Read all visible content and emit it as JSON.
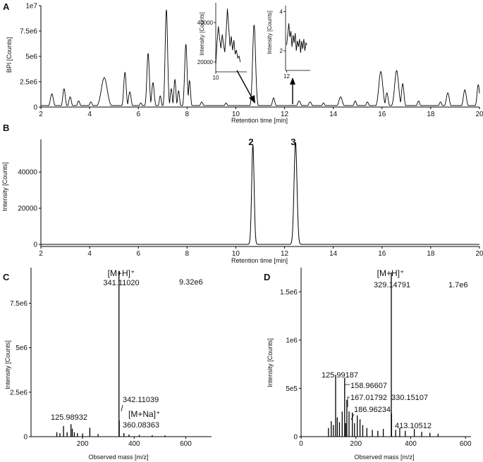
{
  "figure": {
    "panel_labels": [
      "A",
      "B",
      "C",
      "D"
    ]
  },
  "chart_data": [
    {
      "panel": "A",
      "type": "line",
      "xlabel": "Retention time [min]",
      "ylabel": "BPI [Counts]",
      "xlim": [
        2,
        20
      ],
      "ylim": [
        0,
        10000000
      ],
      "xticks": [
        2,
        4,
        6,
        8,
        10,
        12,
        14,
        16,
        18,
        20
      ],
      "yticks": [
        0,
        2500000,
        5000000,
        7500000,
        10000000
      ],
      "ytick_labels": [
        "0",
        "2.5e6",
        "5e6",
        "7.5e6",
        "1e7"
      ],
      "baseline": 150000,
      "peaks": [
        {
          "x": 2.45,
          "y": 1300000,
          "w": 0.06
        },
        {
          "x": 2.95,
          "y": 1800000,
          "w": 0.05
        },
        {
          "x": 3.2,
          "y": 1000000,
          "w": 0.05
        },
        {
          "x": 3.55,
          "y": 600000,
          "w": 0.05
        },
        {
          "x": 4.05,
          "y": 500000,
          "w": 0.05
        },
        {
          "x": 4.6,
          "y": 2900000,
          "w": 0.12
        },
        {
          "x": 5.45,
          "y": 3400000,
          "w": 0.05
        },
        {
          "x": 5.65,
          "y": 1500000,
          "w": 0.05
        },
        {
          "x": 6.1,
          "y": 400000,
          "w": 0.05
        },
        {
          "x": 6.4,
          "y": 5300000,
          "w": 0.05
        },
        {
          "x": 6.6,
          "y": 2400000,
          "w": 0.05
        },
        {
          "x": 6.9,
          "y": 1100000,
          "w": 0.04
        },
        {
          "x": 7.15,
          "y": 9600000,
          "w": 0.05
        },
        {
          "x": 7.35,
          "y": 1800000,
          "w": 0.04
        },
        {
          "x": 7.5,
          "y": 2700000,
          "w": 0.04
        },
        {
          "x": 7.65,
          "y": 1600000,
          "w": 0.04
        },
        {
          "x": 7.95,
          "y": 6200000,
          "w": 0.05
        },
        {
          "x": 8.1,
          "y": 2600000,
          "w": 0.04
        },
        {
          "x": 8.6,
          "y": 500000,
          "w": 0.05
        },
        {
          "x": 9.6,
          "y": 400000,
          "w": 0.05
        },
        {
          "x": 10.75,
          "y": 8100000,
          "w": 0.06
        },
        {
          "x": 11.55,
          "y": 900000,
          "w": 0.05
        },
        {
          "x": 12.6,
          "y": 600000,
          "w": 0.06
        },
        {
          "x": 13.05,
          "y": 500000,
          "w": 0.06
        },
        {
          "x": 13.6,
          "y": 400000,
          "w": 0.05
        },
        {
          "x": 14.3,
          "y": 1000000,
          "w": 0.07
        },
        {
          "x": 14.9,
          "y": 600000,
          "w": 0.05
        },
        {
          "x": 15.4,
          "y": 500000,
          "w": 0.05
        },
        {
          "x": 15.95,
          "y": 3500000,
          "w": 0.08
        },
        {
          "x": 16.2,
          "y": 1400000,
          "w": 0.05
        },
        {
          "x": 16.6,
          "y": 3600000,
          "w": 0.08
        },
        {
          "x": 16.85,
          "y": 2300000,
          "w": 0.05
        },
        {
          "x": 17.5,
          "y": 600000,
          "w": 0.05
        },
        {
          "x": 18.4,
          "y": 500000,
          "w": 0.05
        },
        {
          "x": 18.7,
          "y": 1400000,
          "w": 0.06
        },
        {
          "x": 19.4,
          "y": 1700000,
          "w": 0.06
        },
        {
          "x": 19.95,
          "y": 2200000,
          "w": 0.05
        }
      ],
      "insets": [
        {
          "type": "line",
          "ylabel": "Intensity [Counts]",
          "xlim": [
            10,
            11.2
          ],
          "ylim": [
            15000,
            50000
          ],
          "xticks": [
            10
          ],
          "yticks": [
            20000,
            40000
          ],
          "x": [
            10.0,
            10.05,
            10.1,
            10.15,
            10.2,
            10.25,
            10.3,
            10.35,
            10.4,
            10.45,
            10.5,
            10.55,
            10.6,
            10.65,
            10.7,
            10.75,
            10.8,
            10.85,
            10.9,
            10.95
          ],
          "y": [
            19000,
            30000,
            38000,
            32000,
            27000,
            34000,
            29000,
            25000,
            35000,
            47000,
            38000,
            28000,
            33000,
            26000,
            31000,
            24000,
            26000,
            22000,
            23000,
            20000
          ]
        },
        {
          "type": "line",
          "ylabel": "Intensity [Counts]",
          "xlim": [
            11.95,
            13.1
          ],
          "ylim": [
            1,
            4.3
          ],
          "xticks": [
            12
          ],
          "yticks": [
            2,
            4
          ],
          "x": [
            12.0,
            12.05,
            12.1,
            12.15,
            12.2,
            12.25,
            12.3,
            12.35,
            12.4,
            12.45,
            12.5,
            12.55,
            12.6,
            12.65,
            12.7,
            12.75,
            12.8,
            12.85,
            12.9,
            12.95
          ],
          "y": [
            2.3,
            2.8,
            3.4,
            2.7,
            3.0,
            2.2,
            2.8,
            2.4,
            2.9,
            2.0,
            2.5,
            2.2,
            2.6,
            1.9,
            2.5,
            2.1,
            2.6,
            2.0,
            2.4,
            2.3
          ]
        }
      ]
    },
    {
      "panel": "B",
      "type": "line",
      "xlabel": "Retention time [min]",
      "ylabel": "Intensity [Counts]",
      "xlim": [
        2,
        20
      ],
      "ylim": [
        0,
        58000
      ],
      "xticks": [
        2,
        4,
        6,
        8,
        10,
        12,
        14,
        16,
        18,
        20
      ],
      "yticks": [
        0,
        20000,
        40000
      ],
      "peaks": [
        {
          "x": 10.7,
          "y": 55000,
          "w": 0.05,
          "label": "2"
        },
        {
          "x": 12.45,
          "y": 56500,
          "w": 0.06,
          "label": "3"
        }
      ]
    },
    {
      "panel": "C",
      "type": "bar",
      "xlabel": "Observed mass [m/z]",
      "ylabel": "Intensity [Counts]",
      "xlim": [
        0,
        700
      ],
      "ylim": [
        0,
        9500000
      ],
      "xticks": [
        200,
        400,
        600
      ],
      "yticks": [
        0,
        2500000,
        5000000,
        7500000
      ],
      "ytick_labels": [
        "0",
        "2.5e6",
        "5e6",
        "7.5e6"
      ],
      "max_intensity_label": "9.32e6",
      "x": [
        100,
        112,
        125.98932,
        140,
        155,
        160,
        168,
        180,
        200,
        228,
        260,
        341.1102,
        342.11039,
        360.08363,
        380,
        420,
        470,
        520
      ],
      "y": [
        250000,
        200000,
        600000,
        250000,
        700000,
        450000,
        250000,
        200000,
        180000,
        500000,
        150000,
        9320000,
        900000,
        200000,
        120000,
        100000,
        80000,
        70000
      ],
      "annotations": [
        {
          "ion": "[M+H]⁺",
          "mz": "341.11020"
        },
        {
          "mz": "125.98932"
        },
        {
          "mz": "342.11039"
        },
        {
          "ion": "[M+Na]⁺",
          "mz": "360.08363"
        }
      ]
    },
    {
      "panel": "D",
      "type": "bar",
      "xlabel": "Observed mass [m/z]",
      "ylabel": "Intensity [Counts]",
      "xlim": [
        0,
        620
      ],
      "ylim": [
        0,
        1750000
      ],
      "xticks": [
        0,
        200,
        400,
        600
      ],
      "yticks": [
        0,
        500000,
        1000000,
        1500000
      ],
      "ytick_labels": [
        "0",
        "5e5",
        "1e6",
        "1.5e6"
      ],
      "max_intensity_label": "1.7e6",
      "x": [
        100,
        110,
        118,
        125.99187,
        132,
        140,
        150,
        158.96607,
        163,
        167.01792,
        175,
        186.96234,
        195,
        205,
        215,
        225,
        240,
        260,
        280,
        300,
        329.14791,
        330.15107,
        345,
        360,
        380,
        413.10512,
        440,
        470,
        500
      ],
      "y": [
        90000,
        160000,
        120000,
        640000,
        200000,
        150000,
        260000,
        610000,
        140000,
        380000,
        260000,
        250000,
        140000,
        220000,
        180000,
        120000,
        90000,
        70000,
        60000,
        80000,
        1700000,
        240000,
        70000,
        90000,
        60000,
        80000,
        50000,
        40000,
        30000
      ],
      "annotations": [
        {
          "ion": "[M+H]⁺",
          "mz": "329.14791"
        },
        {
          "mz": "125.99187"
        },
        {
          "mz": "158.96607"
        },
        {
          "mz": "167.01792"
        },
        {
          "mz": "186.96234"
        },
        {
          "mz": "330.15107"
        },
        {
          "mz": "413.10512"
        }
      ]
    }
  ]
}
